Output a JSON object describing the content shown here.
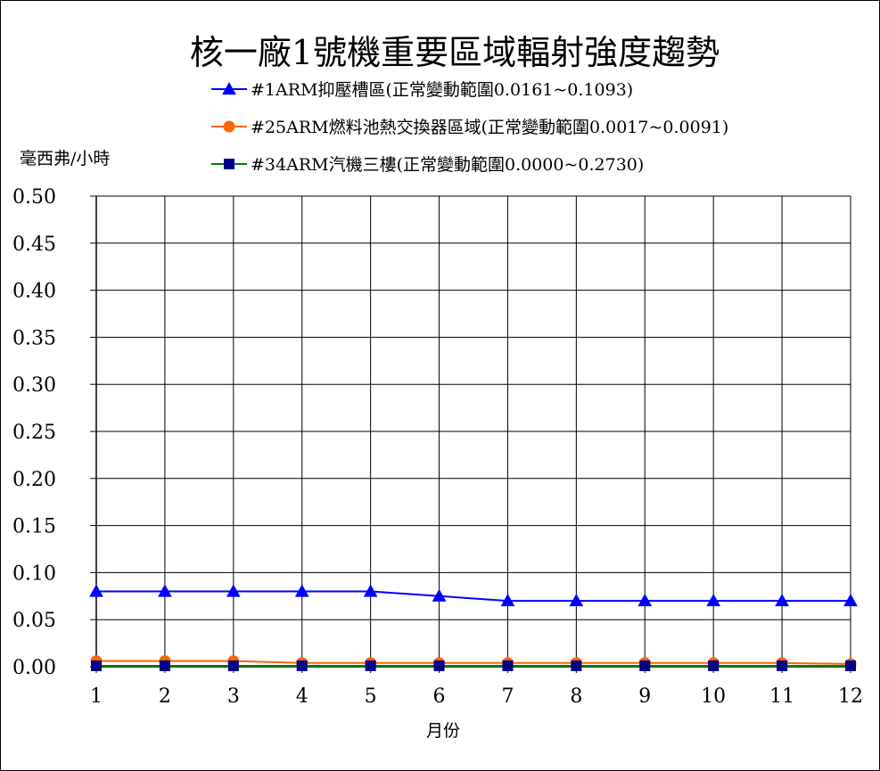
{
  "chart_data": {
    "type": "line",
    "title": "核一廠1號機重要區域輻射強度趨勢",
    "ylabel": "毫西弗/小時",
    "xlabel": "月份",
    "categories": [
      "1",
      "2",
      "3",
      "4",
      "5",
      "6",
      "7",
      "8",
      "9",
      "10",
      "11",
      "12"
    ],
    "ylim": [
      0,
      0.5
    ],
    "yticks": [
      "0.00",
      "0.05",
      "0.10",
      "0.15",
      "0.20",
      "0.25",
      "0.30",
      "0.35",
      "0.40",
      "0.45",
      "0.50"
    ],
    "grid": true,
    "legend_position": "top",
    "series": [
      {
        "name": "#1ARM抑壓槽區(正常變動範圍0.0161~0.1093)",
        "color": "#0000FF",
        "marker": "triangle",
        "values": [
          0.08,
          0.08,
          0.08,
          0.08,
          0.08,
          0.075,
          0.07,
          0.07,
          0.07,
          0.07,
          0.07,
          0.07
        ]
      },
      {
        "name": "#25ARM燃料池熱交換器區域(正常變動範圍0.0017~0.0091)",
        "color": "#FF6600",
        "marker": "circle",
        "values": [
          0.006,
          0.006,
          0.006,
          0.004,
          0.004,
          0.004,
          0.004,
          0.004,
          0.004,
          0.004,
          0.004,
          0.003
        ]
      },
      {
        "name": "#34ARM汽機三樓(正常變動範圍0.0000~0.2730)",
        "color": "#008000",
        "marker_color": "#00008B",
        "marker": "square",
        "values": [
          0.001,
          0.001,
          0.001,
          0.001,
          0.001,
          0.001,
          0.001,
          0.001,
          0.001,
          0.001,
          0.001,
          0.001
        ]
      }
    ]
  }
}
